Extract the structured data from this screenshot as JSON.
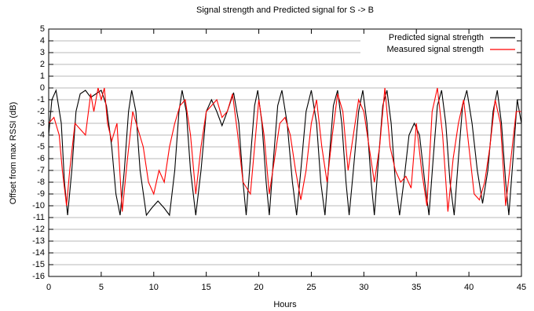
{
  "chart_data": {
    "type": "line",
    "title": "Signal strength and Predicted signal for S -> B",
    "x_label": "Hours",
    "y_label": "Offset from max RSSI (dB)",
    "xlim": [
      0,
      45
    ],
    "xticks": [
      0,
      5,
      10,
      15,
      20,
      25,
      30,
      35,
      40,
      45
    ],
    "ylim": [
      -16,
      5
    ],
    "yticks": [
      -16,
      -15,
      -14,
      -13,
      -12,
      -11,
      -10,
      -9,
      -8,
      -7,
      -6,
      -5,
      -4,
      -3,
      -2,
      -1,
      0,
      1,
      2,
      3,
      4,
      5
    ],
    "grid": true,
    "legend": "top-right",
    "series": [
      {
        "name": "Predicted signal strength",
        "color": "#000000",
        "x": [
          0,
          0.3,
          0.7,
          1.2,
          1.5,
          1.8,
          2.2,
          2.6,
          3,
          3.5,
          4,
          4.5,
          5,
          5.5,
          6,
          6.4,
          6.8,
          7.2,
          7.6,
          7.9,
          8.3,
          8.7,
          9.3,
          9.8,
          10.4,
          11,
          11.5,
          12,
          12.4,
          12.7,
          13.1,
          13.5,
          14,
          14.5,
          15,
          15.5,
          16,
          16.5,
          17,
          17.6,
          18.1,
          18.5,
          18.8,
          19.2,
          19.6,
          19.9,
          20.3,
          20.7,
          21,
          21.4,
          21.8,
          22.2,
          22.7,
          23.2,
          23.6,
          24,
          24.5,
          25,
          25.5,
          25.9,
          26.3,
          26.7,
          27.1,
          27.5,
          27.9,
          28.3,
          28.6,
          29,
          29.5,
          29.9,
          30.3,
          30.7,
          31,
          31.4,
          31.8,
          32.2,
          32.6,
          33,
          33.4,
          33.8,
          34.3,
          34.8,
          35.3,
          35.8,
          36.2,
          36.6,
          37,
          37.4,
          37.8,
          38.2,
          38.6,
          39,
          39.4,
          39.8,
          40.3,
          40.8,
          41.3,
          41.8,
          42.3,
          42.7,
          43.1,
          43.5,
          43.8,
          44.2,
          44.6,
          45
        ],
        "values": [
          -4,
          -1,
          -0.2,
          -3,
          -8,
          -10.8,
          -7,
          -2,
          -0.5,
          -0.2,
          -0.8,
          -0.5,
          -0.2,
          -1.5,
          -5,
          -9,
          -10.8,
          -7,
          -2,
          -0.2,
          -2,
          -7,
          -10.8,
          -10.2,
          -9.6,
          -10.2,
          -10.8,
          -7,
          -2,
          -0.2,
          -2,
          -7,
          -10.8,
          -7,
          -2,
          -1,
          -2,
          -3.2,
          -2,
          -0.4,
          -3,
          -8,
          -10.8,
          -6,
          -1.5,
          -0.2,
          -3,
          -8,
          -10.8,
          -6,
          -1.5,
          -0.2,
          -3,
          -8,
          -10.8,
          -7,
          -2,
          -0.2,
          -3,
          -8,
          -10.8,
          -6,
          -1.5,
          -0.2,
          -3,
          -8,
          -10.8,
          -7,
          -2,
          -0.2,
          -3,
          -8,
          -10.8,
          -6,
          -1.5,
          -0.2,
          -3,
          -8,
          -10.8,
          -8,
          -4,
          -3,
          -4,
          -8,
          -10.8,
          -6,
          -1.5,
          -0.2,
          -3,
          -8,
          -10.8,
          -6,
          -1.5,
          -0.2,
          -3,
          -7,
          -9.8,
          -7,
          -2,
          -0.2,
          -3,
          -8,
          -10.8,
          -6,
          -1,
          -3
        ]
      },
      {
        "name": "Measured signal strength",
        "color": "#ff0000",
        "x": [
          0,
          0.5,
          1,
          1.3,
          1.7,
          2,
          2.5,
          3,
          3.5,
          4,
          4.3,
          4.7,
          5,
          5.3,
          5.6,
          6,
          6.5,
          7,
          7.5,
          8,
          8.5,
          9,
          9.5,
          10,
          10.5,
          11,
          11.5,
          12,
          12.5,
          13,
          13.5,
          14,
          14.5,
          15,
          15.5,
          16,
          16.5,
          17,
          17.5,
          18,
          18.5,
          19.2,
          19.6,
          20,
          20.5,
          21,
          21.5,
          22,
          22.5,
          23,
          23.5,
          24,
          24.5,
          25,
          25.5,
          26,
          26.5,
          27,
          27.5,
          28,
          28.5,
          29,
          29.5,
          30,
          30.5,
          31,
          31.5,
          32,
          32.5,
          33,
          33.5,
          34,
          34.5,
          35,
          35.5,
          36,
          36.5,
          37,
          37.5,
          38,
          38.5,
          39,
          39.5,
          40,
          40.5,
          41,
          41.5,
          42,
          42.5,
          43,
          43.5,
          44,
          44.5,
          45
        ],
        "values": [
          -3,
          -2.5,
          -4,
          -7,
          -10,
          -7,
          -3,
          -3.5,
          -4,
          -0.5,
          -2,
          0,
          -1,
          0,
          -3,
          -4.5,
          -3,
          -10.5,
          -6,
          -2,
          -3.5,
          -5,
          -8,
          -9,
          -7,
          -8,
          -5,
          -3,
          -1.5,
          -1,
          -4,
          -9,
          -5,
          -2,
          -1.5,
          -1,
          -2.5,
          -2,
          -0.5,
          -4,
          -8,
          -9,
          -5,
          -1,
          -4,
          -9,
          -6,
          -3,
          -2.5,
          -4,
          -7,
          -9.5,
          -7,
          -3,
          -1,
          -5,
          -8,
          -4,
          -0.5,
          -2,
          -7,
          -4,
          -1,
          -2,
          -5,
          -8,
          -5,
          0,
          -5,
          -7,
          -8,
          -7.5,
          -8.5,
          -3,
          -7,
          -10,
          -2,
          0,
          -4,
          -10.5,
          -6,
          -3,
          -1,
          -5,
          -9,
          -9.5,
          -8,
          -5,
          -1,
          -3,
          -10,
          -6,
          -2,
          -2
        ]
      }
    ]
  }
}
